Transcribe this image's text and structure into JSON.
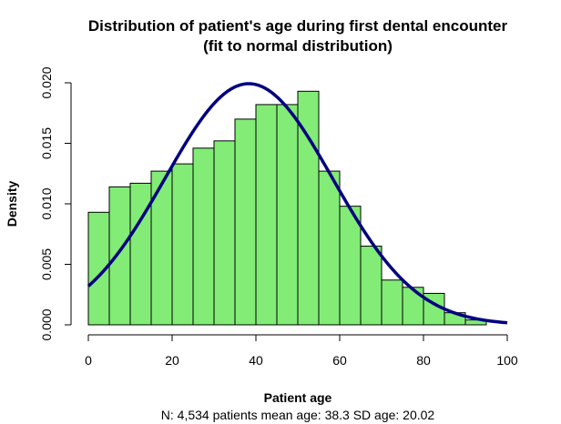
{
  "chart_data": {
    "type": "histogram",
    "title": "Distribution of patient's age during first dental encounter",
    "subtitle": "(fit to normal distribution)",
    "xlabel": "Patient age",
    "ylabel": "Density",
    "caption": "N: 4,534 patients  mean age: 38.3  SD age: 20.02",
    "xlim": [
      0,
      100
    ],
    "ylim": [
      0,
      0.02
    ],
    "xticks": [
      "0",
      "20",
      "40",
      "60",
      "80",
      "100"
    ],
    "yticks": [
      "0.000",
      "0.005",
      "0.010",
      "0.015",
      "0.020"
    ],
    "bins": [
      {
        "x0": 0,
        "x1": 5,
        "density": 0.0093
      },
      {
        "x0": 5,
        "x1": 10,
        "density": 0.0114
      },
      {
        "x0": 10,
        "x1": 15,
        "density": 0.0117
      },
      {
        "x0": 15,
        "x1": 20,
        "density": 0.0127
      },
      {
        "x0": 20,
        "x1": 25,
        "density": 0.0133
      },
      {
        "x0": 25,
        "x1": 30,
        "density": 0.0146
      },
      {
        "x0": 30,
        "x1": 35,
        "density": 0.0152
      },
      {
        "x0": 35,
        "x1": 40,
        "density": 0.017
      },
      {
        "x0": 40,
        "x1": 45,
        "density": 0.0182
      },
      {
        "x0": 45,
        "x1": 50,
        "density": 0.0182
      },
      {
        "x0": 50,
        "x1": 55,
        "density": 0.0193
      },
      {
        "x0": 55,
        "x1": 60,
        "density": 0.0127
      },
      {
        "x0": 60,
        "x1": 65,
        "density": 0.0098
      },
      {
        "x0": 65,
        "x1": 70,
        "density": 0.0065
      },
      {
        "x0": 70,
        "x1": 75,
        "density": 0.0037
      },
      {
        "x0": 75,
        "x1": 80,
        "density": 0.0031
      },
      {
        "x0": 80,
        "x1": 85,
        "density": 0.0026
      },
      {
        "x0": 85,
        "x1": 90,
        "density": 0.001
      },
      {
        "x0": 90,
        "x1": 95,
        "density": 0.0004
      }
    ],
    "normal_fit": {
      "mean": 38.3,
      "sd": 20.02,
      "x_range": [
        0,
        100
      ]
    },
    "colors": {
      "bars": "#82ec76",
      "curve": "#000080"
    },
    "grid": false,
    "legend": "none"
  }
}
